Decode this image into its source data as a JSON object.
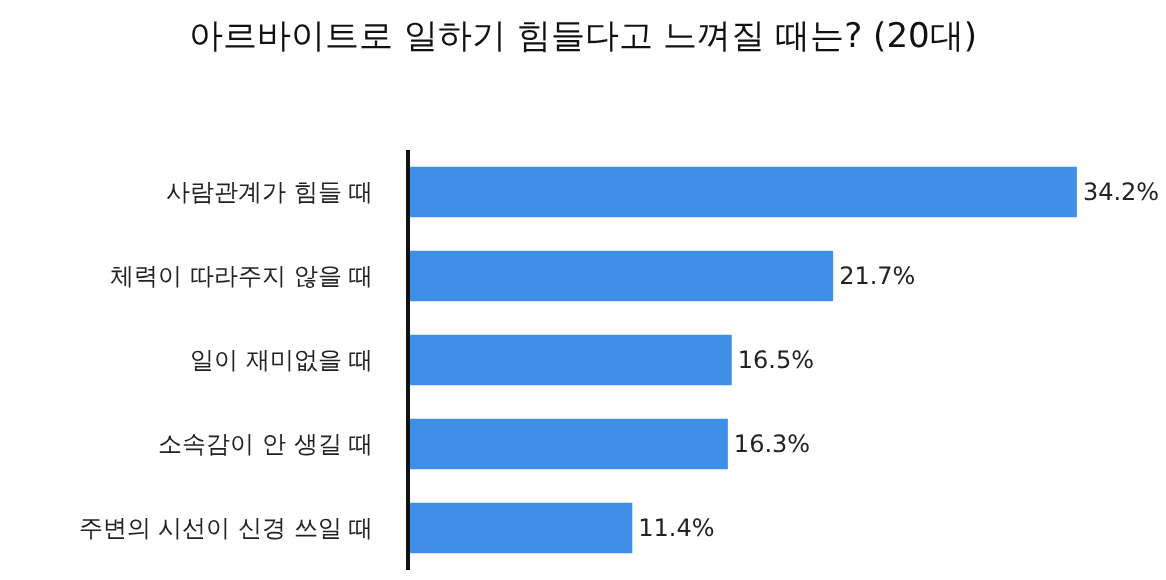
{
  "chart_data": {
    "type": "bar",
    "orientation": "horizontal",
    "title": "아르바이트로 일하기 힘들다고 느껴질 때는? (20대)",
    "categories": [
      "사람관계가 힘들 때",
      "체력이 따라주지 않을 때",
      "일이 재미없을 때",
      "소속감이 안 생길 때",
      "주변의 시선이 신경 쓰일 때"
    ],
    "values": [
      34.2,
      21.7,
      16.5,
      16.3,
      11.4
    ],
    "value_labels": [
      "34.2%",
      "21.7%",
      "16.5%",
      "16.3%",
      "11.4%"
    ],
    "color": "#3d8fe8",
    "tick_labels": "y"
  }
}
